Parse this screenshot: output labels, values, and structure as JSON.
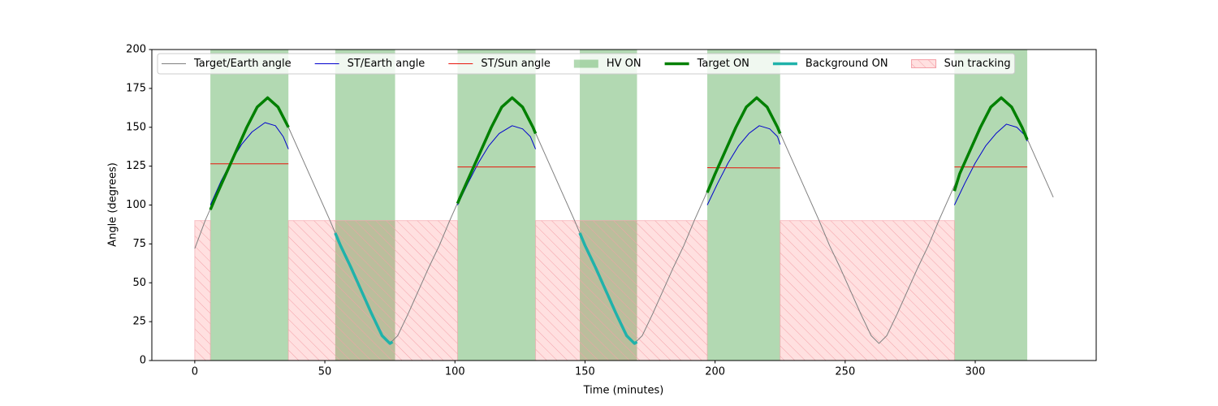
{
  "chart_data": {
    "type": "line",
    "xlabel": "Time (minutes)",
    "ylabel": "Angle (degrees)",
    "xlim": [
      -16.5,
      346.5
    ],
    "ylim": [
      0,
      200
    ],
    "xticks": [
      0,
      50,
      100,
      150,
      200,
      250,
      300
    ],
    "yticks": [
      0,
      25,
      50,
      75,
      100,
      125,
      150,
      175,
      200
    ],
    "legend": "upper left",
    "series": [
      {
        "name": "Target/Earth angle",
        "kind": "line",
        "color": "#808080",
        "width": 1,
        "x": [
          0,
          4,
          8,
          12,
          16,
          20,
          24,
          28,
          32,
          36,
          40,
          44,
          48,
          52,
          56,
          60,
          64,
          68,
          72,
          75,
          78,
          82,
          86,
          90,
          94,
          98,
          102,
          106,
          110,
          114,
          118,
          122,
          126,
          130,
          134,
          138,
          142,
          146,
          150,
          154,
          158,
          162,
          166,
          169,
          172,
          176,
          180,
          184,
          188,
          192,
          196,
          200,
          204,
          208,
          212,
          216,
          220,
          224,
          228,
          232,
          236,
          240,
          244,
          248,
          252,
          256,
          260,
          263,
          266,
          270,
          274,
          278,
          282,
          286,
          290,
          294,
          298,
          302,
          306,
          310,
          314,
          318,
          322,
          326,
          330
        ],
        "values": [
          72,
          90,
          105,
          120,
          135,
          150,
          163,
          169,
          163,
          150,
          135,
          120,
          105,
          90,
          74,
          60,
          45,
          30,
          16,
          11,
          16,
          30,
          45,
          60,
          74,
          90,
          105,
          120,
          135,
          150,
          163,
          169,
          163,
          150,
          135,
          120,
          105,
          90,
          74,
          60,
          45,
          30,
          16,
          11,
          16,
          30,
          45,
          60,
          74,
          90,
          105,
          120,
          135,
          150,
          163,
          169,
          163,
          150,
          135,
          120,
          105,
          90,
          74,
          60,
          45,
          30,
          16,
          11,
          16,
          30,
          45,
          60,
          74,
          90,
          105,
          120,
          135,
          150,
          163,
          169,
          163,
          150,
          135,
          120,
          105
        ]
      },
      {
        "name": "ST/Earth angle",
        "kind": "line",
        "color": "#0000cd",
        "width": 1,
        "x": [
          6,
          10,
          14,
          18,
          22,
          27,
          31,
          34,
          36,
          null,
          101,
          105,
          109,
          113,
          117,
          122,
          126,
          129,
          131,
          null,
          197,
          201,
          205,
          209,
          213,
          217,
          221,
          224,
          225,
          null,
          292,
          296,
          300,
          304,
          308,
          312,
          316,
          319,
          320
        ],
        "values": [
          100,
          115,
          128,
          139,
          147,
          153,
          151,
          144,
          136,
          null,
          100,
          114,
          127,
          138,
          146,
          151,
          149,
          144,
          136,
          null,
          100,
          114,
          127,
          138,
          146,
          151,
          149,
          144,
          139,
          null,
          100,
          114,
          127,
          138,
          146,
          152,
          150,
          145,
          141
        ]
      },
      {
        "name": "ST/Sun angle",
        "kind": "line",
        "color": "#e8160c",
        "width": 1,
        "x": [
          6,
          36,
          null,
          101,
          131,
          null,
          197,
          225,
          null,
          292,
          320
        ],
        "values": [
          126.5,
          126.5,
          null,
          124.5,
          124.5,
          null,
          124,
          123.8,
          null,
          124.5,
          124.5
        ]
      },
      {
        "name": "HV ON",
        "kind": "span",
        "color": "#008000",
        "opacity": 0.3,
        "ranges": [
          [
            6,
            36
          ],
          [
            54,
            77
          ],
          [
            101,
            131
          ],
          [
            148,
            170
          ],
          [
            197,
            225
          ],
          [
            292,
            320
          ]
        ]
      },
      {
        "name": "Target ON",
        "kind": "line",
        "color": "#008000",
        "width": 3.5,
        "x": [
          6,
          8,
          12,
          16,
          20,
          24,
          28,
          32,
          36,
          null,
          101,
          102,
          106,
          110,
          114,
          118,
          122,
          126,
          130,
          131,
          null,
          197,
          200,
          204,
          208,
          212,
          216,
          220,
          224,
          225,
          null,
          292,
          294,
          298,
          302,
          306,
          310,
          314,
          318,
          320
        ],
        "values": [
          97,
          105,
          120,
          135,
          150,
          163,
          169,
          163,
          150,
          null,
          101,
          105,
          120,
          135,
          150,
          163,
          169,
          163,
          150,
          146,
          null,
          108,
          120,
          135,
          150,
          163,
          169,
          163,
          150,
          146,
          null,
          109,
          120,
          135,
          150,
          163,
          169,
          163,
          150,
          142
        ]
      },
      {
        "name": "Background ON",
        "kind": "line",
        "color": "#20b2aa",
        "width": 3.5,
        "x": [
          54,
          56,
          60,
          64,
          68,
          72,
          75,
          76,
          null,
          148,
          150,
          154,
          158,
          162,
          166,
          169,
          170
        ],
        "values": [
          82,
          74,
          60,
          45,
          30,
          16,
          11,
          12,
          null,
          82,
          74,
          60,
          45,
          30,
          16,
          11,
          12
        ]
      },
      {
        "name": "Sun tracking",
        "kind": "span",
        "color": "#ff0000",
        "opacity": 0.12,
        "hatch": "#f4a0a8",
        "top": 90,
        "ranges": [
          [
            0,
            6
          ],
          [
            36,
            101
          ],
          [
            131,
            197
          ],
          [
            225,
            292
          ]
        ]
      }
    ]
  }
}
